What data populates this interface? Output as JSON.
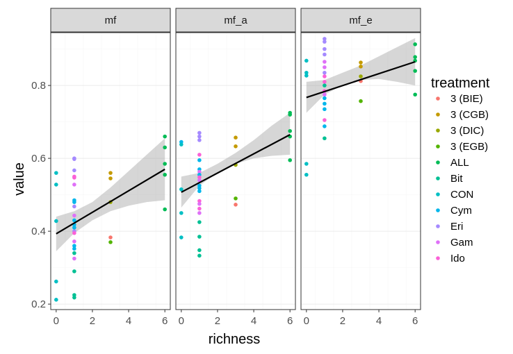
{
  "chart_data": {
    "type": "scatter",
    "title": "",
    "xlabel": "richness",
    "ylabel": "value",
    "xlim": [
      -0.3,
      6.3
    ],
    "ylim": [
      0.185,
      0.945
    ],
    "x_ticks": [
      "0",
      "2",
      "4",
      "6"
    ],
    "y_ticks": [
      "0.2",
      "0.4",
      "0.6",
      "0.8"
    ],
    "x_tick_values": [
      0,
      2,
      4,
      6
    ],
    "y_tick_values": [
      0.2,
      0.4,
      0.6,
      0.8
    ],
    "grid": true,
    "legend": {
      "title": "treatment",
      "placement": "right",
      "entries": [
        {
          "label": "3 (BIE)",
          "color": "#F8766D"
        },
        {
          "label": "3 (CGB)",
          "color": "#C49A00"
        },
        {
          "label": "3 (DIC)",
          "color": "#99A800"
        },
        {
          "label": "3 (EGB)",
          "color": "#53B400"
        },
        {
          "label": "ALL",
          "color": "#00BC56"
        },
        {
          "label": "Bit",
          "color": "#00C094"
        },
        {
          "label": "CON",
          "color": "#00BFC4"
        },
        {
          "label": "Cym",
          "color": "#00B6EB"
        },
        {
          "label": "Eri",
          "color": "#A58AFF"
        },
        {
          "label": "Gam",
          "color": "#DF70F8"
        },
        {
          "label": "Ido",
          "color": "#FB61D7"
        }
      ]
    },
    "panels": [
      {
        "label": "mf",
        "trend": {
          "x": [
            0,
            6
          ],
          "y": [
            0.393,
            0.57
          ]
        },
        "band": {
          "x": [
            0,
            1,
            2,
            3,
            4,
            5,
            6
          ],
          "lower": [
            0.345,
            0.395,
            0.43,
            0.455,
            0.47,
            0.48,
            0.485
          ],
          "upper": [
            0.44,
            0.455,
            0.48,
            0.52,
            0.565,
            0.61,
            0.655
          ]
        },
        "points": [
          {
            "x": 0,
            "y": 0.56,
            "group": "CON"
          },
          {
            "x": 0,
            "y": 0.528,
            "group": "CON"
          },
          {
            "x": 0,
            "y": 0.428,
            "group": "CON"
          },
          {
            "x": 0,
            "y": 0.262,
            "group": "CON"
          },
          {
            "x": 0,
            "y": 0.212,
            "group": "CON"
          },
          {
            "x": 1,
            "y": 0.6,
            "group": "Eri"
          },
          {
            "x": 1,
            "y": 0.598,
            "group": "Eri"
          },
          {
            "x": 1,
            "y": 0.567,
            "group": "Eri"
          },
          {
            "x": 1,
            "y": 0.55,
            "group": "Ido"
          },
          {
            "x": 1,
            "y": 0.547,
            "group": "Ido"
          },
          {
            "x": 1,
            "y": 0.528,
            "group": "Gam"
          },
          {
            "x": 1,
            "y": 0.485,
            "group": "Cym"
          },
          {
            "x": 1,
            "y": 0.48,
            "group": "Cym"
          },
          {
            "x": 1,
            "y": 0.468,
            "group": "Eri"
          },
          {
            "x": 1,
            "y": 0.443,
            "group": "Gam"
          },
          {
            "x": 1,
            "y": 0.43,
            "group": "Cym"
          },
          {
            "x": 1,
            "y": 0.418,
            "group": "Cym"
          },
          {
            "x": 1,
            "y": 0.41,
            "group": "Cym"
          },
          {
            "x": 1,
            "y": 0.4,
            "group": "Eri"
          },
          {
            "x": 1,
            "y": 0.395,
            "group": "Ido"
          },
          {
            "x": 1,
            "y": 0.372,
            "group": "Gam"
          },
          {
            "x": 1,
            "y": 0.36,
            "group": "Cym"
          },
          {
            "x": 1,
            "y": 0.352,
            "group": "Cym"
          },
          {
            "x": 1,
            "y": 0.34,
            "group": "Bit"
          },
          {
            "x": 1,
            "y": 0.325,
            "group": "Gam"
          },
          {
            "x": 1,
            "y": 0.29,
            "group": "Bit"
          },
          {
            "x": 1,
            "y": 0.225,
            "group": "Bit"
          },
          {
            "x": 1,
            "y": 0.218,
            "group": "Bit"
          },
          {
            "x": 3,
            "y": 0.56,
            "group": "3 (CGB)"
          },
          {
            "x": 3,
            "y": 0.545,
            "group": "3 (CGB)"
          },
          {
            "x": 3,
            "y": 0.48,
            "group": "3 (DIC)"
          },
          {
            "x": 3,
            "y": 0.383,
            "group": "3 (BIE)"
          },
          {
            "x": 3,
            "y": 0.37,
            "group": "3 (EGB)"
          },
          {
            "x": 6,
            "y": 0.66,
            "group": "ALL"
          },
          {
            "x": 6,
            "y": 0.63,
            "group": "ALL"
          },
          {
            "x": 6,
            "y": 0.585,
            "group": "ALL"
          },
          {
            "x": 6,
            "y": 0.555,
            "group": "ALL"
          },
          {
            "x": 6,
            "y": 0.46,
            "group": "ALL"
          }
        ]
      },
      {
        "label": "mf_a",
        "trend": {
          "x": [
            0,
            6
          ],
          "y": [
            0.507,
            0.665
          ]
        },
        "band": {
          "x": [
            0,
            1,
            2,
            3,
            4,
            5,
            6
          ],
          "lower": [
            0.465,
            0.525,
            0.56,
            0.585,
            0.6,
            0.607,
            0.61
          ],
          "upper": [
            0.55,
            0.56,
            0.585,
            0.615,
            0.65,
            0.69,
            0.725
          ]
        },
        "points": [
          {
            "x": 0,
            "y": 0.645,
            "group": "Cym"
          },
          {
            "x": 0,
            "y": 0.638,
            "group": "CON"
          },
          {
            "x": 0,
            "y": 0.515,
            "group": "CON"
          },
          {
            "x": 0,
            "y": 0.45,
            "group": "CON"
          },
          {
            "x": 0,
            "y": 0.383,
            "group": "CON"
          },
          {
            "x": 1,
            "y": 0.67,
            "group": "Eri"
          },
          {
            "x": 1,
            "y": 0.66,
            "group": "Eri"
          },
          {
            "x": 1,
            "y": 0.65,
            "group": "Eri"
          },
          {
            "x": 1,
            "y": 0.61,
            "group": "Ido"
          },
          {
            "x": 1,
            "y": 0.595,
            "group": "Cym"
          },
          {
            "x": 1,
            "y": 0.57,
            "group": "Cym"
          },
          {
            "x": 1,
            "y": 0.563,
            "group": "Gam"
          },
          {
            "x": 1,
            "y": 0.555,
            "group": "Cym"
          },
          {
            "x": 1,
            "y": 0.548,
            "group": "Ido"
          },
          {
            "x": 1,
            "y": 0.54,
            "group": "Gam"
          },
          {
            "x": 1,
            "y": 0.525,
            "group": "Cym"
          },
          {
            "x": 1,
            "y": 0.518,
            "group": "Cym"
          },
          {
            "x": 1,
            "y": 0.51,
            "group": "Cym"
          },
          {
            "x": 1,
            "y": 0.483,
            "group": "Ido"
          },
          {
            "x": 1,
            "y": 0.475,
            "group": "Gam"
          },
          {
            "x": 1,
            "y": 0.462,
            "group": "Ido"
          },
          {
            "x": 1,
            "y": 0.45,
            "group": "Gam"
          },
          {
            "x": 1,
            "y": 0.425,
            "group": "Bit"
          },
          {
            "x": 1,
            "y": 0.385,
            "group": "Bit"
          },
          {
            "x": 1,
            "y": 0.348,
            "group": "Bit"
          },
          {
            "x": 1,
            "y": 0.333,
            "group": "Bit"
          },
          {
            "x": 3,
            "y": 0.657,
            "group": "3 (CGB)"
          },
          {
            "x": 3,
            "y": 0.633,
            "group": "3 (CGB)"
          },
          {
            "x": 3,
            "y": 0.582,
            "group": "3 (DIC)"
          },
          {
            "x": 3,
            "y": 0.49,
            "group": "3 (EGB)"
          },
          {
            "x": 3,
            "y": 0.473,
            "group": "3 (BIE)"
          },
          {
            "x": 6,
            "y": 0.725,
            "group": "ALL"
          },
          {
            "x": 6,
            "y": 0.72,
            "group": "ALL"
          },
          {
            "x": 6,
            "y": 0.675,
            "group": "ALL"
          },
          {
            "x": 6,
            "y": 0.66,
            "group": "ALL"
          },
          {
            "x": 6,
            "y": 0.595,
            "group": "ALL"
          }
        ]
      },
      {
        "label": "mf_e",
        "trend": {
          "x": [
            0,
            6
          ],
          "y": [
            0.767,
            0.865
          ]
        },
        "band": {
          "x": [
            0,
            1,
            2,
            3,
            4,
            5,
            6
          ],
          "lower": [
            0.725,
            0.775,
            0.8,
            0.815,
            0.818,
            0.81,
            0.8
          ],
          "upper": [
            0.81,
            0.815,
            0.835,
            0.855,
            0.88,
            0.905,
            0.93
          ]
        },
        "points": [
          {
            "x": 0,
            "y": 0.868,
            "group": "CON"
          },
          {
            "x": 0,
            "y": 0.835,
            "group": "CON"
          },
          {
            "x": 0,
            "y": 0.827,
            "group": "CON"
          },
          {
            "x": 0,
            "y": 0.585,
            "group": "CON"
          },
          {
            "x": 0,
            "y": 0.555,
            "group": "CON"
          },
          {
            "x": 1,
            "y": 0.928,
            "group": "Eri"
          },
          {
            "x": 1,
            "y": 0.92,
            "group": "Eri"
          },
          {
            "x": 1,
            "y": 0.9,
            "group": "Eri"
          },
          {
            "x": 1,
            "y": 0.885,
            "group": "Eri"
          },
          {
            "x": 1,
            "y": 0.865,
            "group": "Gam"
          },
          {
            "x": 1,
            "y": 0.85,
            "group": "Gam"
          },
          {
            "x": 1,
            "y": 0.835,
            "group": "Eri"
          },
          {
            "x": 1,
            "y": 0.825,
            "group": "Ido"
          },
          {
            "x": 1,
            "y": 0.81,
            "group": "Ido"
          },
          {
            "x": 1,
            "y": 0.8,
            "group": "Bit"
          },
          {
            "x": 1,
            "y": 0.785,
            "group": "Ido"
          },
          {
            "x": 1,
            "y": 0.775,
            "group": "Gam"
          },
          {
            "x": 1,
            "y": 0.765,
            "group": "Cym"
          },
          {
            "x": 1,
            "y": 0.75,
            "group": "Cym"
          },
          {
            "x": 1,
            "y": 0.735,
            "group": "Cym"
          },
          {
            "x": 1,
            "y": 0.705,
            "group": "Ido"
          },
          {
            "x": 1,
            "y": 0.688,
            "group": "Cym"
          },
          {
            "x": 1,
            "y": 0.655,
            "group": "Bit"
          },
          {
            "x": 3,
            "y": 0.863,
            "group": "3 (CGB)"
          },
          {
            "x": 3,
            "y": 0.852,
            "group": "3 (CGB)"
          },
          {
            "x": 3,
            "y": 0.825,
            "group": "3 (DIC)"
          },
          {
            "x": 3,
            "y": 0.812,
            "group": "3 (BIE)"
          },
          {
            "x": 3,
            "y": 0.757,
            "group": "3 (EGB)"
          },
          {
            "x": 6,
            "y": 0.913,
            "group": "ALL"
          },
          {
            "x": 6,
            "y": 0.878,
            "group": "ALL"
          },
          {
            "x": 6,
            "y": 0.868,
            "group": "ALL"
          },
          {
            "x": 6,
            "y": 0.84,
            "group": "ALL"
          },
          {
            "x": 6,
            "y": 0.775,
            "group": "ALL"
          }
        ]
      }
    ]
  }
}
